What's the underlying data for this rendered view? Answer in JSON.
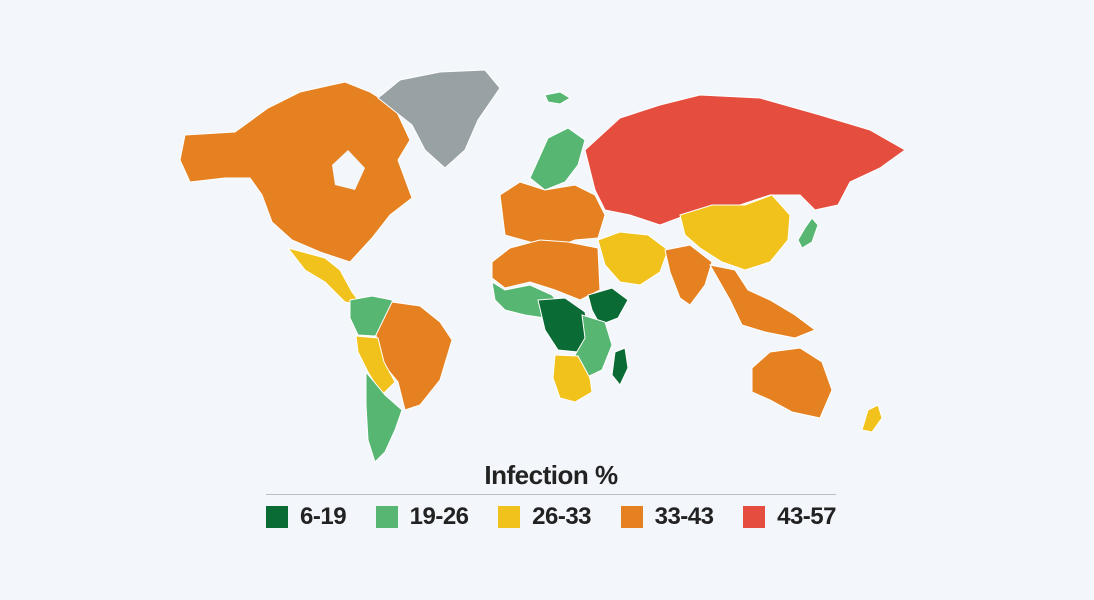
{
  "legend": {
    "title": "Infection %",
    "items": [
      {
        "label": "6-19",
        "color": "#0b6b35"
      },
      {
        "label": "19-26",
        "color": "#56b672"
      },
      {
        "label": "26-33",
        "color": "#f1c21b"
      },
      {
        "label": "33-43",
        "color": "#e58120"
      },
      {
        "label": "43-57",
        "color": "#e54e3f"
      }
    ]
  },
  "no_data_color": "#98a2a4",
  "regions": [
    {
      "name": "north-america",
      "color": "#e58120"
    },
    {
      "name": "greenland",
      "color": "#98a2a4"
    },
    {
      "name": "central-america",
      "color": "#f1c21b"
    },
    {
      "name": "south-america-north",
      "color": "#56b672"
    },
    {
      "name": "brazil",
      "color": "#e58120"
    },
    {
      "name": "peru-bolivia",
      "color": "#f1c21b"
    },
    {
      "name": "southern-cone",
      "color": "#56b672"
    },
    {
      "name": "iceland",
      "color": "#56b672"
    },
    {
      "name": "scandinavia",
      "color": "#56b672"
    },
    {
      "name": "europe",
      "color": "#e58120"
    },
    {
      "name": "russia",
      "color": "#e54e3f"
    },
    {
      "name": "north-africa",
      "color": "#e58120"
    },
    {
      "name": "west-africa",
      "color": "#56b672"
    },
    {
      "name": "central-africa",
      "color": "#0b6b35"
    },
    {
      "name": "horn-of-africa",
      "color": "#0b6b35"
    },
    {
      "name": "east-africa",
      "color": "#56b672"
    },
    {
      "name": "southern-africa",
      "color": "#f1c21b"
    },
    {
      "name": "madagascar",
      "color": "#0b6b35"
    },
    {
      "name": "middle-east",
      "color": "#f1c21b"
    },
    {
      "name": "india",
      "color": "#e58120"
    },
    {
      "name": "china",
      "color": "#f1c21b"
    },
    {
      "name": "southeast-asia",
      "color": "#e58120"
    },
    {
      "name": "japan",
      "color": "#56b672"
    },
    {
      "name": "australia",
      "color": "#e58120"
    },
    {
      "name": "new-zealand",
      "color": "#f1c21b"
    }
  ]
}
